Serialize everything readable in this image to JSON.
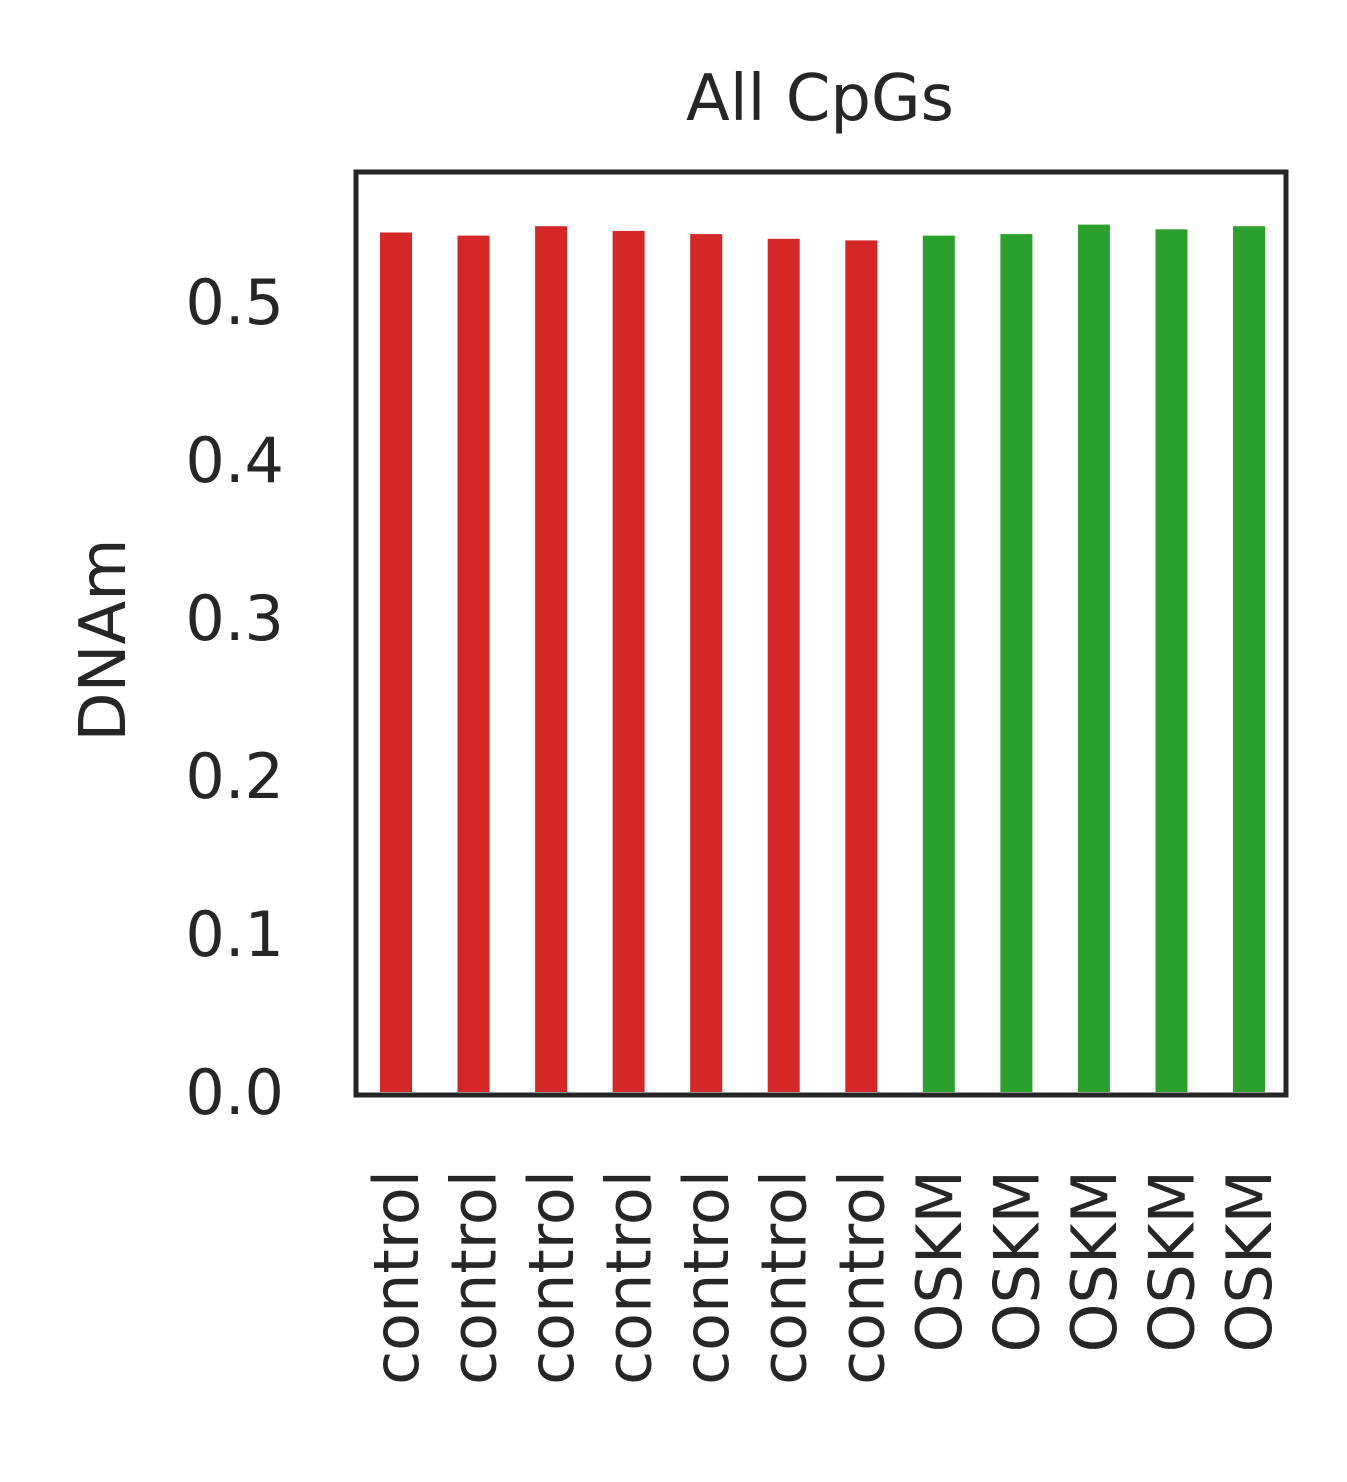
{
  "chart_data": {
    "type": "bar",
    "title": "All CpGs",
    "xlabel": "",
    "ylabel": "DNAm",
    "ylim": [
      0,
      0.58
    ],
    "yticks": [
      0.0,
      0.1,
      0.2,
      0.3,
      0.4,
      0.5
    ],
    "ytick_labels": [
      "0.0",
      "0.1",
      "0.2",
      "0.3",
      "0.4",
      "0.5"
    ],
    "categories": [
      "control",
      "control",
      "control",
      "control",
      "control",
      "control",
      "control",
      "OSKM",
      "OSKM",
      "OSKM",
      "OSKM",
      "OSKM"
    ],
    "values": [
      0.544,
      0.542,
      0.548,
      0.545,
      0.543,
      0.54,
      0.539,
      0.542,
      0.543,
      0.549,
      0.546,
      0.548
    ],
    "bar_colors": [
      "#d62728",
      "#d62728",
      "#d62728",
      "#d62728",
      "#d62728",
      "#d62728",
      "#d62728",
      "#2ca02c",
      "#2ca02c",
      "#2ca02c",
      "#2ca02c",
      "#2ca02c"
    ],
    "grid": false,
    "legend": "none"
  }
}
